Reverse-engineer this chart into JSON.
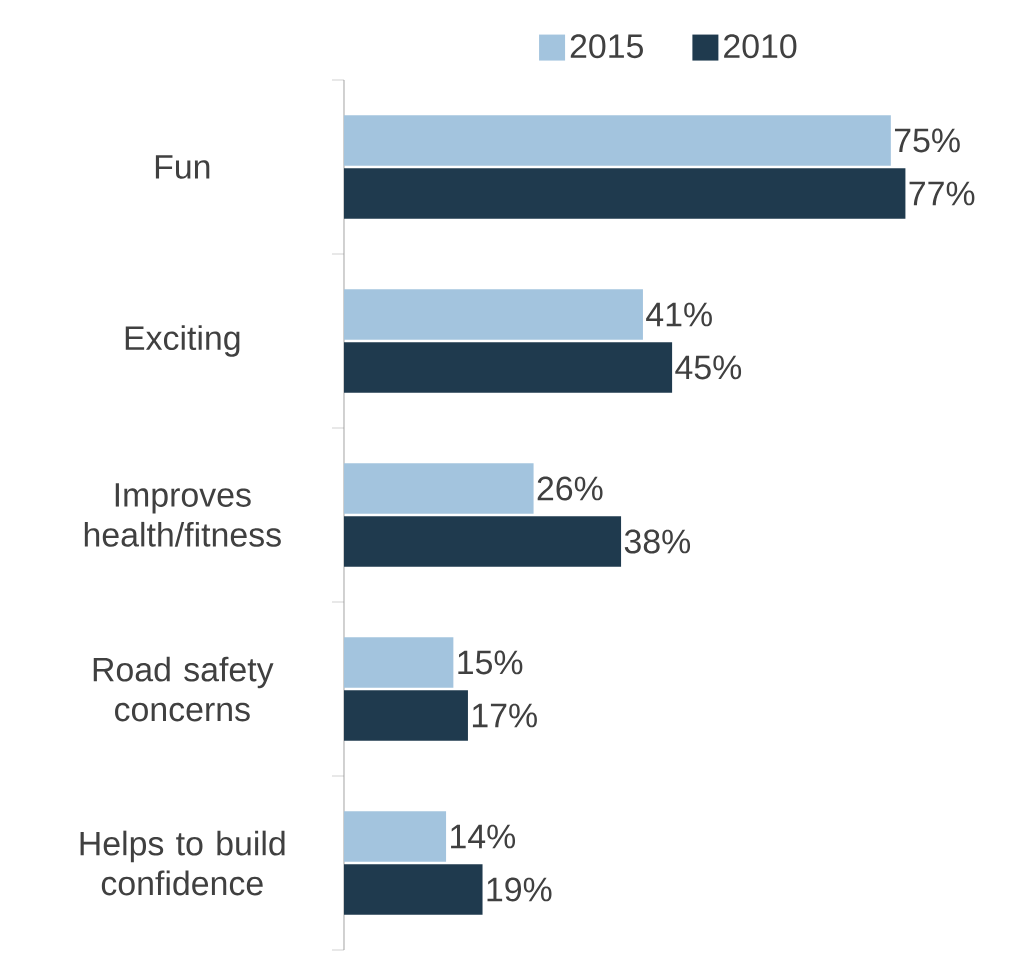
{
  "chart_data": {
    "type": "bar",
    "orientation": "horizontal",
    "legend": "top",
    "categories": [
      "Fun",
      "Exciting",
      "Improves health/fitness",
      "Road safety concerns",
      "Helps to build confidence"
    ],
    "series": [
      {
        "name": "2015",
        "color": "#a3c4de",
        "values": [
          75,
          41,
          26,
          15,
          14
        ],
        "value_labels": [
          "75%",
          "41%",
          "26%",
          "15%",
          "14%"
        ]
      },
      {
        "name": "2010",
        "color": "#1f3a4e",
        "values": [
          77,
          45,
          38,
          17,
          19
        ],
        "value_labels": [
          "77%",
          "45%",
          "38%",
          "17%",
          "19%"
        ]
      }
    ]
  }
}
